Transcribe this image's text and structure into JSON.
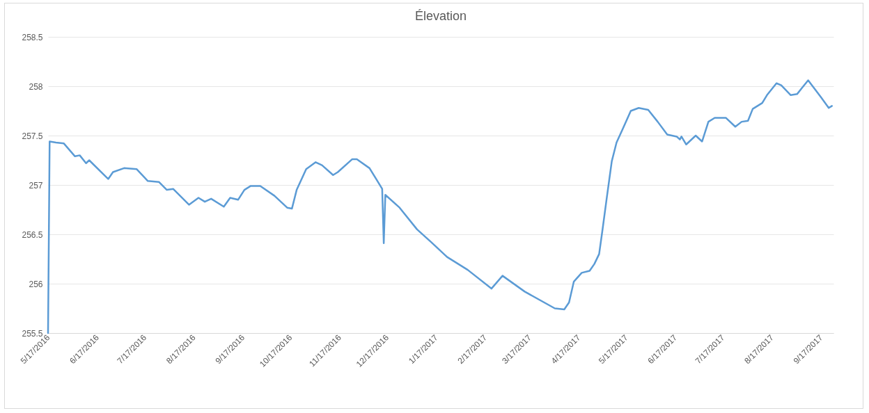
{
  "chart_data": {
    "type": "line",
    "title": "Élevation",
    "x": [
      "2016-05-17",
      "2016-05-18",
      "2016-05-22",
      "2016-05-27",
      "2016-06-03",
      "2016-06-06",
      "2016-06-10",
      "2016-06-12",
      "2016-06-24",
      "2016-06-27",
      "2016-07-04",
      "2016-07-12",
      "2016-07-19",
      "2016-07-26",
      "2016-07-31",
      "2016-08-04",
      "2016-08-14",
      "2016-08-20",
      "2016-08-24",
      "2016-08-28",
      "2016-09-05",
      "2016-09-09",
      "2016-09-14",
      "2016-09-18",
      "2016-09-22",
      "2016-09-28",
      "2016-10-07",
      "2016-10-15",
      "2016-10-18",
      "2016-10-21",
      "2016-10-27",
      "2016-11-02",
      "2016-11-06",
      "2016-11-13",
      "2016-11-16",
      "2016-11-25",
      "2016-11-28",
      "2016-12-06",
      "2016-12-11",
      "2016-12-14",
      "2016-12-15",
      "2016-12-16",
      "2016-12-25",
      "2017-01-05",
      "2017-01-14",
      "2017-01-24",
      "2017-02-06",
      "2017-02-21",
      "2017-02-28",
      "2017-03-14",
      "2017-04-02",
      "2017-04-08",
      "2017-04-11",
      "2017-04-14",
      "2017-04-19",
      "2017-04-24",
      "2017-04-27",
      "2017-04-30",
      "2017-05-02",
      "2017-05-05",
      "2017-05-08",
      "2017-05-11",
      "2017-05-15",
      "2017-05-20",
      "2017-05-25",
      "2017-05-31",
      "2017-06-06",
      "2017-06-12",
      "2017-06-18",
      "2017-06-20",
      "2017-06-21",
      "2017-06-24",
      "2017-06-30",
      "2017-07-04",
      "2017-07-08",
      "2017-07-12",
      "2017-07-19",
      "2017-07-25",
      "2017-07-29",
      "2017-08-02",
      "2017-08-05",
      "2017-08-11",
      "2017-08-14",
      "2017-08-20",
      "2017-08-23",
      "2017-08-29",
      "2017-09-02",
      "2017-09-05",
      "2017-09-09",
      "2017-09-17",
      "2017-09-22",
      "2017-09-24"
    ],
    "series": [
      {
        "color": "#5b9bd5",
        "values": [
          255.5,
          257.44,
          257.43,
          257.42,
          257.29,
          257.3,
          257.22,
          257.25,
          257.06,
          257.13,
          257.17,
          257.16,
          257.04,
          257.03,
          256.95,
          256.96,
          256.8,
          256.87,
          256.83,
          256.86,
          256.78,
          256.87,
          256.85,
          256.95,
          256.99,
          256.99,
          256.89,
          256.77,
          256.76,
          256.95,
          257.16,
          257.23,
          257.2,
          257.1,
          257.13,
          257.26,
          257.26,
          257.17,
          257.04,
          256.96,
          256.41,
          256.9,
          256.77,
          256.55,
          256.42,
          256.27,
          256.14,
          255.95,
          256.08,
          255.92,
          255.75,
          255.74,
          255.81,
          256.02,
          256.11,
          256.13,
          256.2,
          256.3,
          256.53,
          256.89,
          257.24,
          257.43,
          257.57,
          257.75,
          257.78,
          257.76,
          257.64,
          257.51,
          257.49,
          257.46,
          257.49,
          257.41,
          257.5,
          257.44,
          257.64,
          257.68,
          257.68,
          257.59,
          257.64,
          257.65,
          257.77,
          257.83,
          257.91,
          258.03,
          258.01,
          257.91,
          257.92,
          257.98,
          258.06,
          257.89,
          257.78,
          257.8
        ]
      }
    ],
    "xlim": [
      "2016-05-17",
      "2017-09-25"
    ],
    "xticks": [
      {
        "value": "2016-05-17",
        "label": "5/17/2016"
      },
      {
        "value": "2016-06-17",
        "label": "6/17/2016"
      },
      {
        "value": "2016-07-17",
        "label": "7/17/2016"
      },
      {
        "value": "2016-08-17",
        "label": "8/17/2016"
      },
      {
        "value": "2016-09-17",
        "label": "9/17/2016"
      },
      {
        "value": "2016-10-17",
        "label": "10/17/2016"
      },
      {
        "value": "2016-11-17",
        "label": "11/17/2016"
      },
      {
        "value": "2016-12-17",
        "label": "12/17/2016"
      },
      {
        "value": "2017-01-17",
        "label": "1/17/2017"
      },
      {
        "value": "2017-02-17",
        "label": "2/17/2017"
      },
      {
        "value": "2017-03-17",
        "label": "3/17/2017"
      },
      {
        "value": "2017-04-17",
        "label": "4/17/2017"
      },
      {
        "value": "2017-05-17",
        "label": "5/17/2017"
      },
      {
        "value": "2017-06-17",
        "label": "6/17/2017"
      },
      {
        "value": "2017-07-17",
        "label": "7/17/2017"
      },
      {
        "value": "2017-08-17",
        "label": "8/17/2017"
      },
      {
        "value": "2017-09-17",
        "label": "9/17/2017"
      }
    ],
    "ylim": [
      255.5,
      258.5
    ],
    "yticks": [
      255.5,
      256,
      256.5,
      257,
      257.5,
      258,
      258.5
    ],
    "grid": "y",
    "marker": "none",
    "line_style": "solid"
  }
}
